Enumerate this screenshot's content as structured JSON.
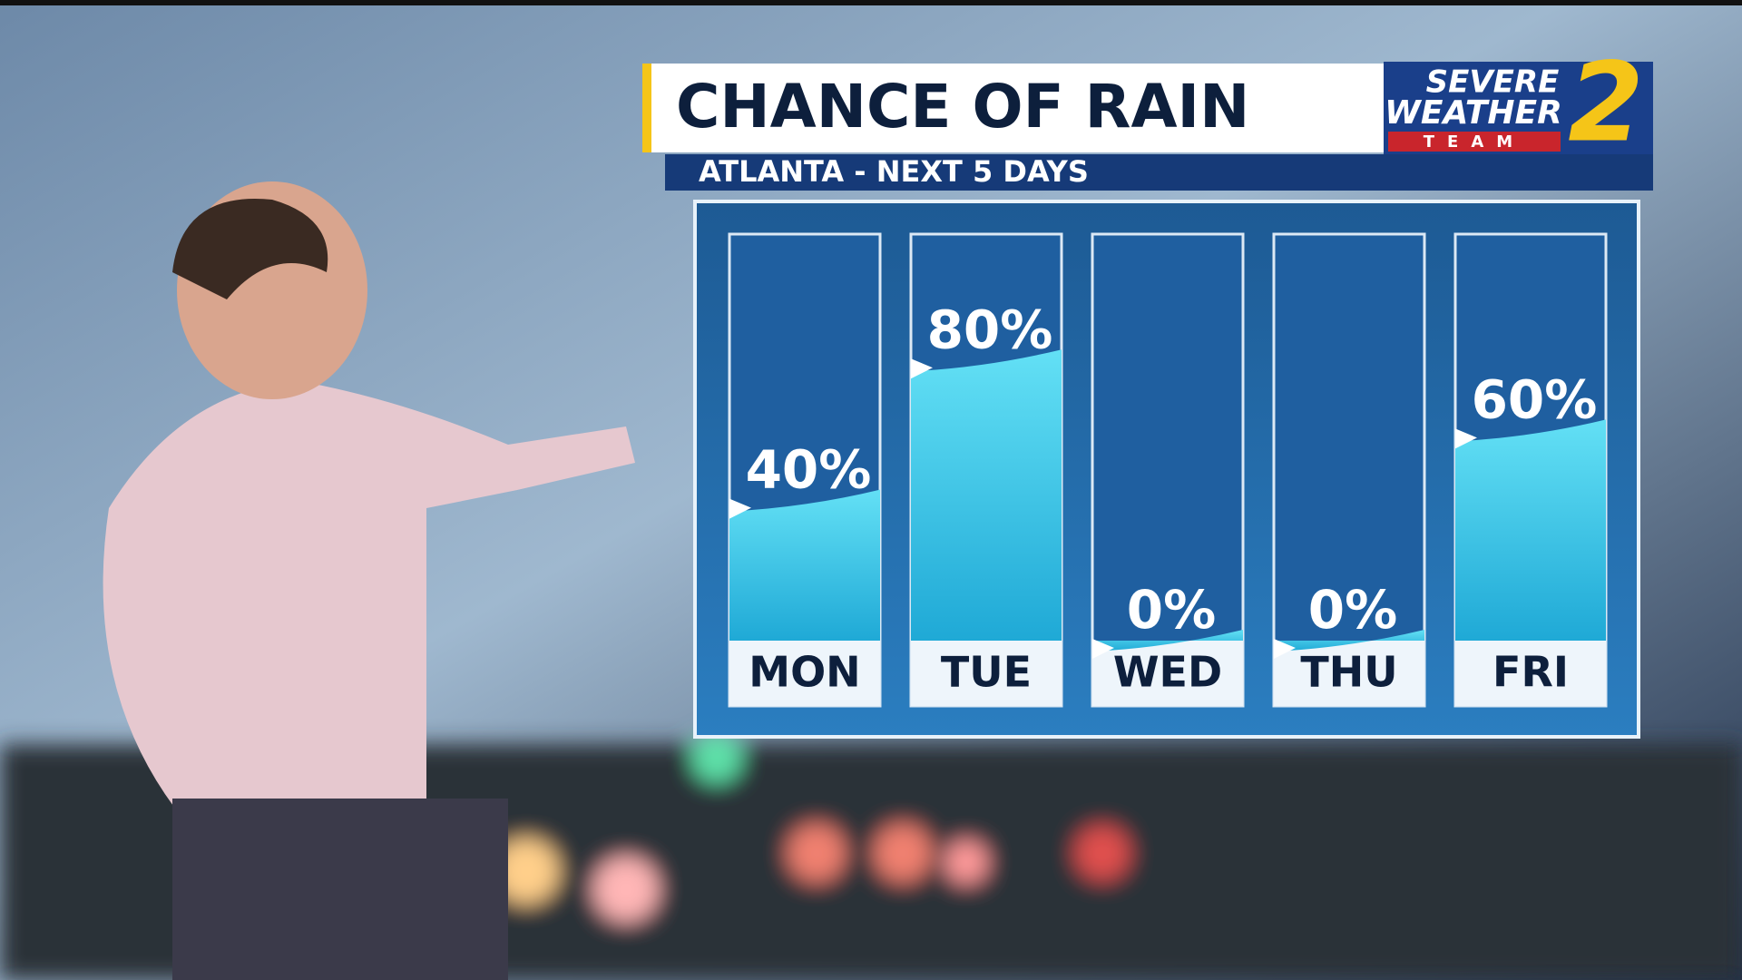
{
  "logo": {
    "line1": "SEVERE",
    "line2": "WEATHER",
    "line3": "TEAM",
    "number": "2"
  },
  "chart_data": {
    "type": "bar",
    "title": "CHANCE OF RAIN",
    "subtitle": "ATLANTA - NEXT 5 DAYS",
    "categories": [
      "MON",
      "TUE",
      "WED",
      "THU",
      "FRI"
    ],
    "values": [
      40,
      80,
      0,
      0,
      60
    ],
    "value_labels": [
      "40%",
      "80%",
      "0%",
      "0%",
      "60%"
    ],
    "color": "#3ec9e8",
    "ylim": [
      0,
      100
    ]
  }
}
